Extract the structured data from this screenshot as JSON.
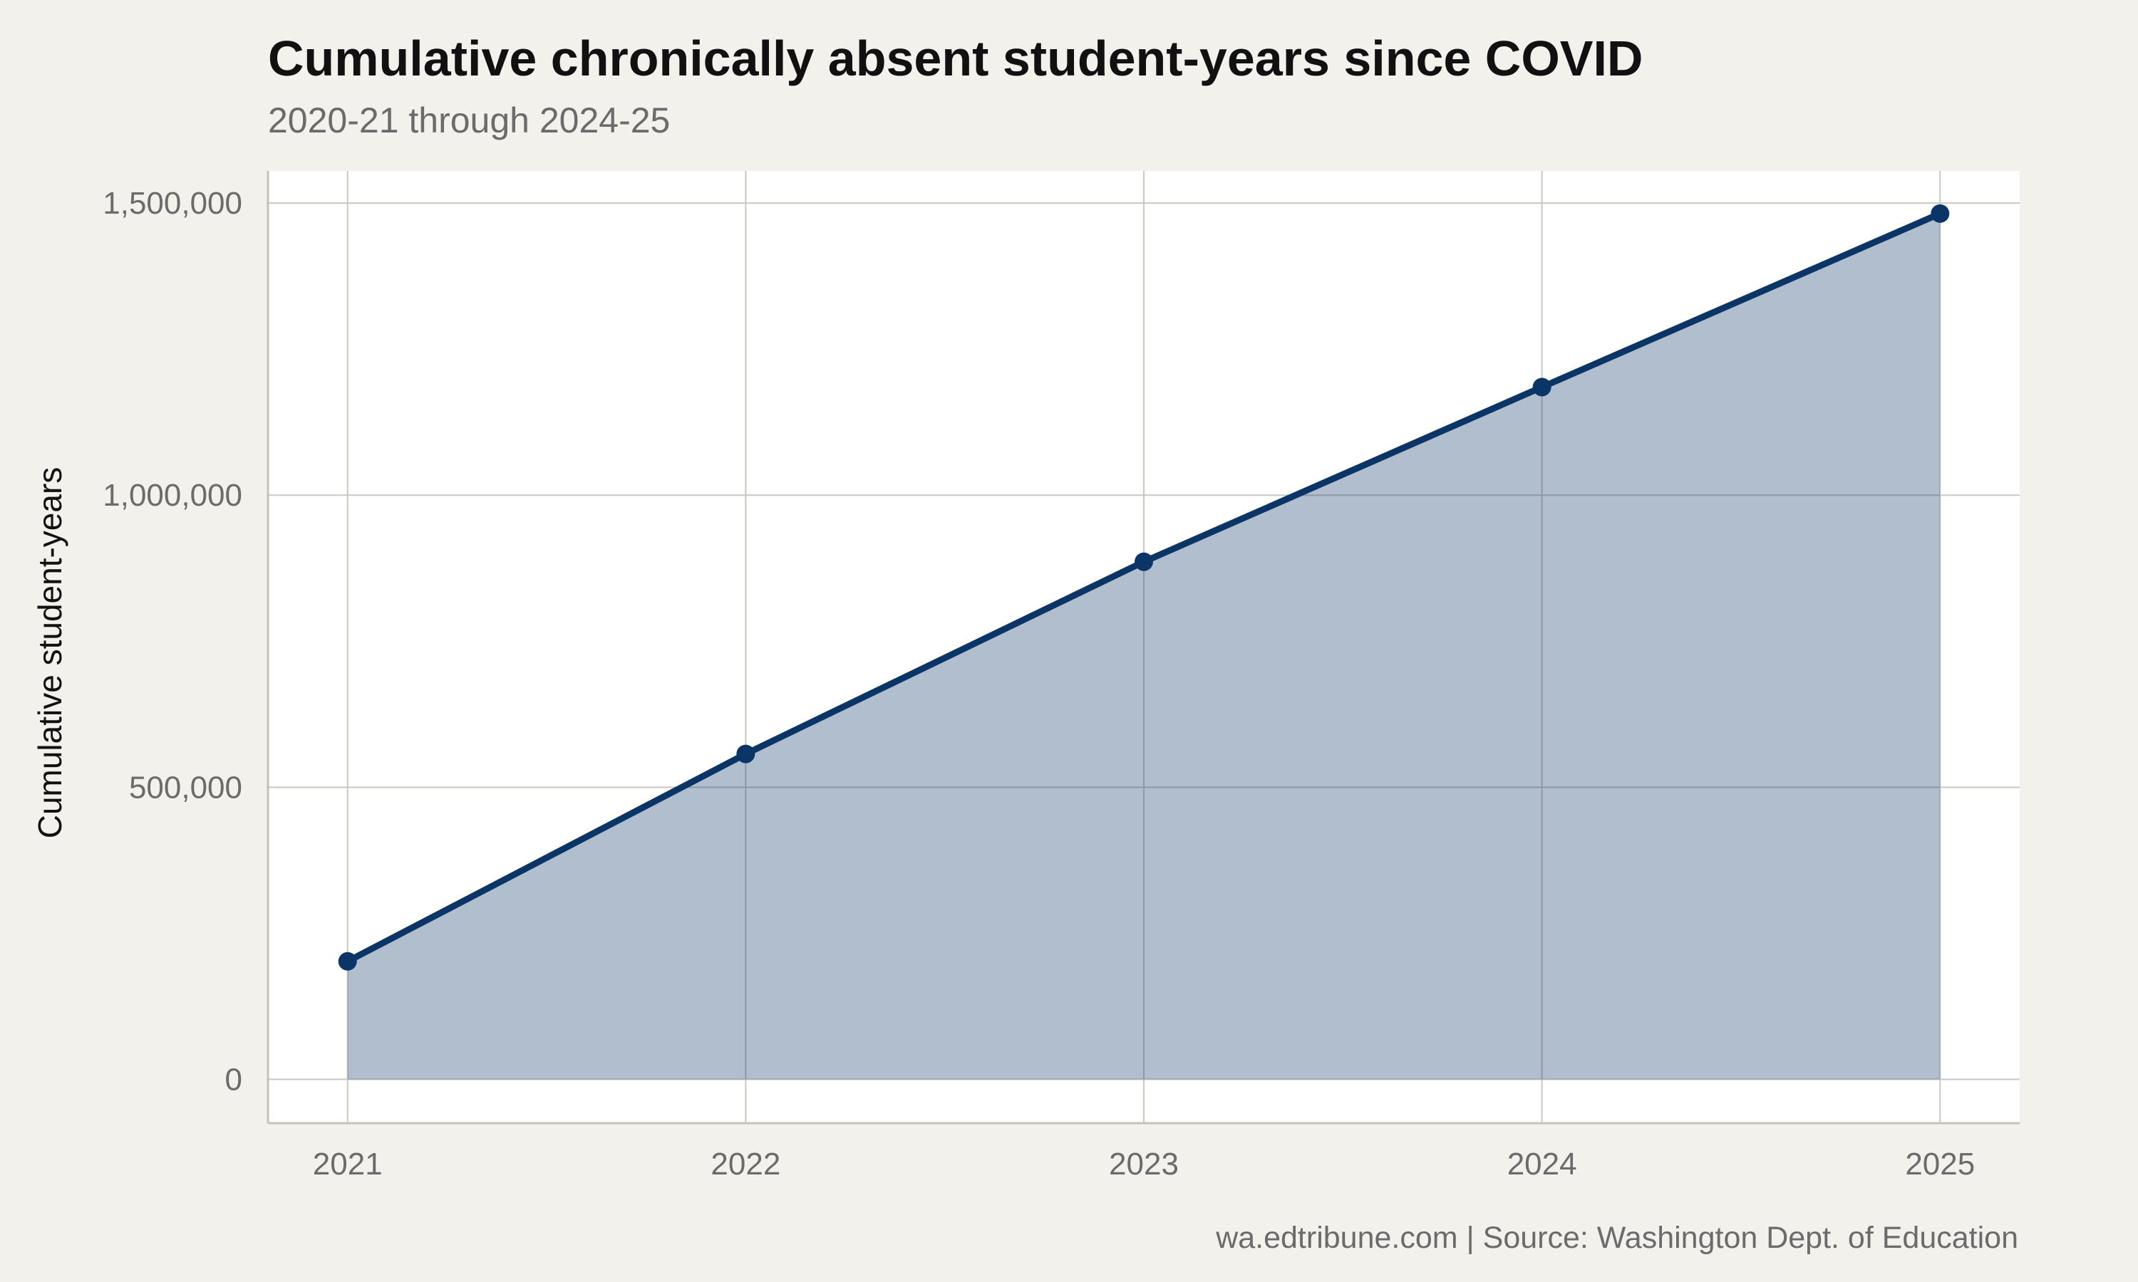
{
  "chart_data": {
    "type": "area",
    "title": "Cumulative chronically absent student-years since COVID",
    "subtitle": "2020-21 through 2024-25",
    "xlabel": "",
    "ylabel": "Cumulative student-years",
    "caption": "wa.edtribune.com | Source: Washington Dept. of Education",
    "x": [
      2021,
      2022,
      2023,
      2024,
      2025
    ],
    "x_tick_labels": [
      "2021",
      "2022",
      "2023",
      "2024",
      "2025"
    ],
    "y_ticks": [
      0,
      500000,
      1000000,
      1500000
    ],
    "y_tick_labels": [
      "0",
      "500,000",
      "1,000,000",
      "1,500,000"
    ],
    "series": [
      {
        "values": [
          202000,
          557000,
          886000,
          1185000,
          1482000
        ]
      }
    ],
    "xlim": [
      2020.8,
      2025.2
    ],
    "ylim": [
      -75000,
      1555000
    ],
    "grid": true,
    "legend": "none",
    "colors": {
      "line": "#0b3566",
      "area": "#afbfd0",
      "panel": "#ffffff",
      "background": "#f3f1ec",
      "grid": "#c9c7bf",
      "axis": "#c4c1b5"
    }
  }
}
